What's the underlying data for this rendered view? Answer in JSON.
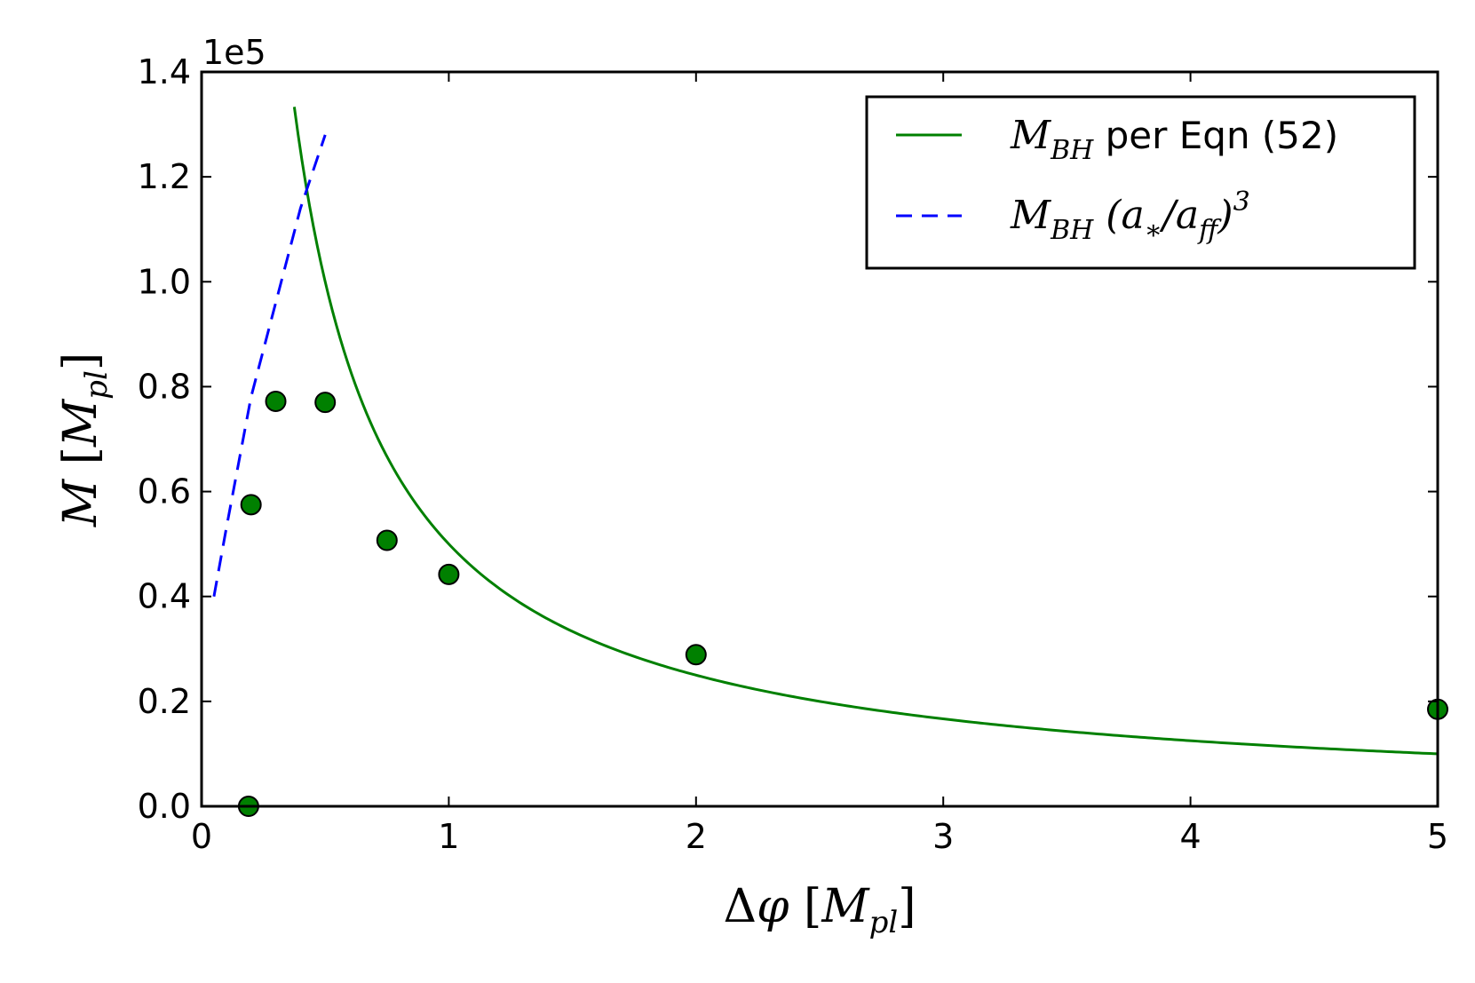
{
  "chart_data": {
    "type": "scatter",
    "xlabel": "Δφ [M_pl]",
    "ylabel": "M [M_pl]",
    "xlim": [
      0,
      5
    ],
    "ylim": [
      0,
      140000
    ],
    "offset_text": "1e5",
    "x_ticks": [
      0,
      1,
      2,
      3,
      4,
      5
    ],
    "x_tick_labels": [
      "0",
      "1",
      "2",
      "3",
      "4",
      "5"
    ],
    "y_ticks": [
      0,
      20000,
      40000,
      60000,
      80000,
      100000,
      120000,
      140000
    ],
    "y_tick_labels": [
      "0.0",
      "0.2",
      "0.4",
      "0.6",
      "0.8",
      "1.0",
      "1.2",
      "1.4"
    ],
    "grid": false,
    "legend": "top-right",
    "series": [
      {
        "name": "M_BH per Eqn (52)",
        "kind": "line",
        "style": "solid",
        "color": "#008000",
        "model": "a/x",
        "coefficient": 50000,
        "x_range": [
          0.375,
          5
        ]
      },
      {
        "name": "M_BH (a_*/a_ff)^3",
        "kind": "line",
        "style": "dashed",
        "color": "#0000ff",
        "x": [
          0.05,
          0.1,
          0.2,
          0.3,
          0.4,
          0.5
        ],
        "y": [
          40000,
          53000,
          78000,
          96000,
          114000,
          128000
        ]
      },
      {
        "name": "",
        "kind": "points",
        "color": "#008000",
        "x": [
          0.19,
          0.2,
          0.3,
          0.5,
          0.75,
          1.0,
          2.0,
          5.0
        ],
        "y": [
          0,
          57500,
          77200,
          77000,
          50700,
          44200,
          28900,
          18500
        ]
      }
    ]
  }
}
